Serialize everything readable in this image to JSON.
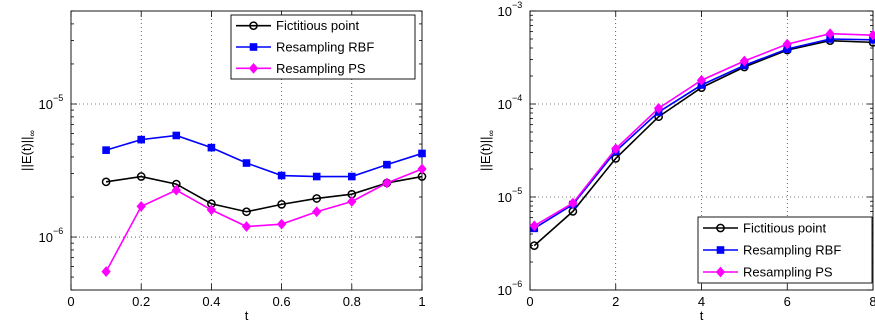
{
  "chart_data": [
    {
      "type": "line",
      "xlabel": "t",
      "ylabel": "||E(t)||",
      "ylabel_sub": "∞",
      "yscale": "log",
      "xlim": [
        0,
        1
      ],
      "ylim": [
        4e-07,
        5e-05
      ],
      "grid": true,
      "legend_position": "top-right",
      "x_ticks": [
        0,
        0.2,
        0.4,
        0.6,
        0.8,
        1
      ],
      "x_tick_labels": [
        "0",
        "0.2",
        "0.4",
        "0.6",
        "0.8",
        "1"
      ],
      "y_ticks": [
        {
          "value": 1e-06,
          "base": "10",
          "exp": "−6"
        },
        {
          "value": 1e-05,
          "base": "10",
          "exp": "−5"
        }
      ],
      "series": [
        {
          "name": "Fictitious point",
          "color": "#000000",
          "marker": "circle",
          "x": [
            0.1,
            0.2,
            0.3,
            0.4,
            0.5,
            0.6,
            0.7,
            0.8,
            0.9,
            1.0
          ],
          "y": [
            2.6e-06,
            2.85e-06,
            2.5e-06,
            1.78e-06,
            1.55e-06,
            1.76e-06,
            1.95e-06,
            2.1e-06,
            2.55e-06,
            2.85e-06
          ]
        },
        {
          "name": "Resampling RBF",
          "color": "#0000ff",
          "marker": "square",
          "x": [
            0.1,
            0.2,
            0.3,
            0.4,
            0.5,
            0.6,
            0.7,
            0.8,
            0.9,
            1.0
          ],
          "y": [
            4.5e-06,
            5.4e-06,
            5.8e-06,
            4.7e-06,
            3.6e-06,
            2.9e-06,
            2.85e-06,
            2.85e-06,
            3.5e-06,
            4.25e-06
          ]
        },
        {
          "name": "Resampling PS",
          "color": "#ff00ff",
          "marker": "diamond",
          "x": [
            0.1,
            0.2,
            0.3,
            0.4,
            0.5,
            0.6,
            0.7,
            0.8,
            0.9,
            1.0
          ],
          "y": [
            5.5e-07,
            1.7e-06,
            2.25e-06,
            1.6e-06,
            1.2e-06,
            1.25e-06,
            1.55e-06,
            1.85e-06,
            2.55e-06,
            3.25e-06
          ]
        }
      ]
    },
    {
      "type": "line",
      "xlabel": "t",
      "ylabel": "||E(t)||",
      "ylabel_sub": "∞",
      "yscale": "log",
      "xlim": [
        0,
        8
      ],
      "ylim": [
        1e-06,
        0.001
      ],
      "grid": true,
      "legend_position": "bottom-right",
      "x_ticks": [
        0,
        2,
        4,
        6,
        8
      ],
      "x_tick_labels": [
        "0",
        "2",
        "4",
        "6",
        "8"
      ],
      "y_ticks": [
        {
          "value": 1e-06,
          "base": "10",
          "exp": "−6"
        },
        {
          "value": 1e-05,
          "base": "10",
          "exp": "−5"
        },
        {
          "value": 0.0001,
          "base": "10",
          "exp": "−4"
        },
        {
          "value": 0.001,
          "base": "10",
          "exp": "−3"
        }
      ],
      "series": [
        {
          "name": "Fictitious point",
          "color": "#000000",
          "marker": "circle",
          "x": [
            0.1,
            1,
            2,
            3,
            4,
            5,
            6,
            7,
            8
          ],
          "y": [
            3e-06,
            7e-06,
            2.6e-05,
            7.3e-05,
            0.00015,
            0.00025,
            0.00038,
            0.00048,
            0.00046
          ]
        },
        {
          "name": "Resampling RBF",
          "color": "#0000ff",
          "marker": "square",
          "x": [
            0.1,
            1,
            2,
            3,
            4,
            5,
            6,
            7,
            8
          ],
          "y": [
            4.6e-06,
            8.3e-06,
            3.1e-05,
            8.2e-05,
            0.00016,
            0.00026,
            0.00039,
            0.0005,
            0.00049
          ]
        },
        {
          "name": "Resampling PS",
          "color": "#ff00ff",
          "marker": "diamond",
          "x": [
            0.1,
            1,
            2,
            3,
            4,
            5,
            6,
            7,
            8
          ],
          "y": [
            4.9e-06,
            8.6e-06,
            3.3e-05,
            9e-05,
            0.00018,
            0.00029,
            0.00044,
            0.00057,
            0.00055
          ]
        }
      ]
    }
  ]
}
